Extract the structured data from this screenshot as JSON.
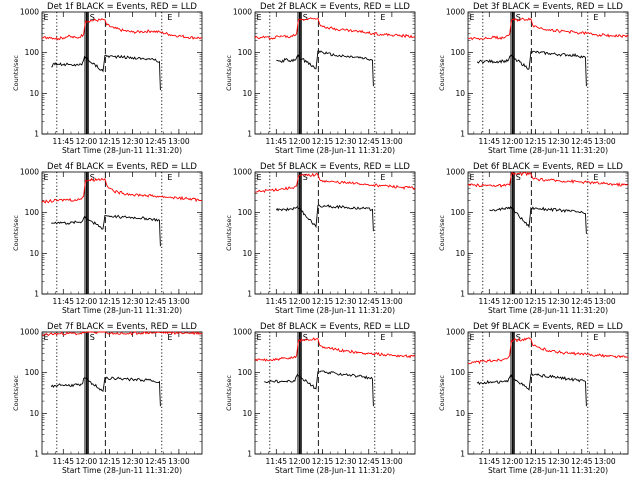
{
  "chart_data": [
    {
      "type": "line",
      "title": "Det 1f BLACK = Events, RED = LLD",
      "xlabel": "Start Time (28-Jun-11 11:31:20)",
      "ylabel": "Counts/sec",
      "yscale": "log",
      "ylim": [
        1,
        1000
      ],
      "xlim": [
        11.52,
        13.25
      ],
      "xticks": [
        "11:45",
        "12:00",
        "12:15",
        "12:30",
        "12:45",
        "13:00"
      ],
      "yticks": [
        "1",
        "10",
        "100",
        "1000"
      ],
      "markers": {
        "start": "E",
        "saa": "S",
        "end": "E"
      },
      "legend": "none",
      "series": [
        {
          "color": "#000000",
          "x": [
            11.62,
            11.65,
            11.7,
            11.75,
            11.8,
            11.85,
            11.9,
            11.95,
            11.98,
            12.18,
            12.2,
            12.3,
            12.4,
            12.5,
            12.6,
            12.7,
            12.79,
            12.8
          ],
          "y": [
            45,
            55,
            52,
            50,
            52,
            48,
            52,
            50,
            80,
            35,
            85,
            80,
            78,
            75,
            72,
            70,
            60,
            12
          ]
        },
        {
          "color": "#ff0000",
          "x": [
            11.52,
            11.6,
            11.7,
            11.8,
            11.9,
            11.97,
            11.99,
            12.2,
            12.22,
            12.3,
            12.4,
            12.5,
            12.6,
            12.7,
            12.8,
            12.9,
            13.0,
            13.1,
            13.25
          ],
          "y": [
            230,
            240,
            220,
            250,
            230,
            280,
            600,
            650,
            480,
            400,
            350,
            320,
            330,
            340,
            320,
            280,
            260,
            240,
            230
          ]
        }
      ]
    },
    {
      "type": "line",
      "title": "Det 2f BLACK = Events, RED = LLD",
      "xlabel": "Start Time (28-Jun-11 11:31:20)",
      "ylabel": "Counts/sec",
      "yscale": "log",
      "ylim": [
        1,
        1000
      ],
      "xlim": [
        11.52,
        13.25
      ],
      "xticks": [
        "11:45",
        "12:00",
        "12:15",
        "12:30",
        "12:45",
        "13:00"
      ],
      "yticks": [
        "1",
        "10",
        "100",
        "1000"
      ],
      "markers": {
        "start": "E",
        "saa": "S",
        "end": "E"
      },
      "legend": "none",
      "series": [
        {
          "color": "#000000",
          "x": [
            11.75,
            11.8,
            11.85,
            11.9,
            11.95,
            11.98,
            12.18,
            12.2,
            12.3,
            12.4,
            12.5,
            12.6,
            12.7,
            12.79,
            12.8
          ],
          "y": [
            65,
            60,
            68,
            60,
            65,
            85,
            40,
            110,
            95,
            85,
            80,
            78,
            72,
            65,
            15
          ]
        },
        {
          "color": "#ff0000",
          "x": [
            11.52,
            11.6,
            11.7,
            11.8,
            11.9,
            11.97,
            11.99,
            12.2,
            12.22,
            12.3,
            12.4,
            12.5,
            12.6,
            12.7,
            12.8,
            12.9,
            13.0,
            13.1,
            13.25
          ],
          "y": [
            230,
            240,
            230,
            260,
            240,
            290,
            650,
            700,
            500,
            420,
            380,
            360,
            340,
            320,
            300,
            280,
            270,
            260,
            250
          ]
        }
      ]
    },
    {
      "type": "line",
      "title": "Det 3f BLACK = Events, RED = LLD",
      "xlabel": "Start Time (28-Jun-11 11:31:20)",
      "ylabel": "Counts/sec",
      "yscale": "log",
      "ylim": [
        1,
        1000
      ],
      "xlim": [
        11.52,
        13.25
      ],
      "xticks": [
        "11:45",
        "12:00",
        "12:15",
        "12:30",
        "12:45",
        "13:00"
      ],
      "yticks": [
        "1",
        "10",
        "100",
        "1000"
      ],
      "markers": {
        "start": "E",
        "saa": "S",
        "end": "E"
      },
      "legend": "none",
      "series": [
        {
          "color": "#000000",
          "x": [
            11.62,
            11.7,
            11.8,
            11.9,
            11.95,
            11.98,
            12.18,
            12.2,
            12.3,
            12.4,
            12.5,
            12.6,
            12.7,
            12.79,
            12.8
          ],
          "y": [
            60,
            62,
            60,
            62,
            62,
            85,
            40,
            105,
            100,
            95,
            90,
            88,
            85,
            75,
            15
          ]
        },
        {
          "color": "#ff0000",
          "x": [
            11.52,
            11.6,
            11.7,
            11.8,
            11.9,
            11.97,
            11.99,
            12.2,
            12.22,
            12.3,
            12.4,
            12.5,
            12.6,
            12.7,
            12.8,
            12.9,
            13.0,
            13.1,
            13.25
          ],
          "y": [
            220,
            230,
            220,
            240,
            230,
            280,
            620,
            680,
            470,
            400,
            370,
            340,
            330,
            310,
            300,
            280,
            270,
            260,
            250
          ]
        }
      ]
    },
    {
      "type": "line",
      "title": "Det 4f BLACK = Events, RED = LLD",
      "xlabel": "Start Time (28-Jun-11 11:31:20)",
      "ylabel": "Counts/sec",
      "yscale": "log",
      "ylim": [
        1,
        1000
      ],
      "xlim": [
        11.52,
        13.25
      ],
      "xticks": [
        "11:45",
        "12:00",
        "12:15",
        "12:30",
        "12:45",
        "13:00"
      ],
      "yticks": [
        "1",
        "10",
        "100",
        "1000"
      ],
      "markers": {
        "start": "E",
        "saa": "S",
        "end": "E"
      },
      "legend": "none",
      "series": [
        {
          "color": "#000000",
          "x": [
            11.62,
            11.7,
            11.8,
            11.9,
            11.95,
            11.98,
            12.18,
            12.2,
            12.3,
            12.4,
            12.5,
            12.6,
            12.7,
            12.79,
            12.8
          ],
          "y": [
            55,
            58,
            55,
            58,
            60,
            80,
            40,
            85,
            80,
            78,
            76,
            74,
            70,
            65,
            15
          ]
        },
        {
          "color": "#ff0000",
          "x": [
            11.52,
            11.6,
            11.7,
            11.8,
            11.9,
            11.97,
            11.99,
            12.2,
            12.22,
            12.3,
            12.4,
            12.5,
            12.6,
            12.7,
            12.8,
            12.9,
            13.0,
            13.1,
            13.25
          ],
          "y": [
            180,
            190,
            200,
            210,
            200,
            250,
            620,
            680,
            480,
            330,
            300,
            280,
            270,
            260,
            250,
            240,
            230,
            220,
            200
          ]
        }
      ]
    },
    {
      "type": "line",
      "title": "Det 5f BLACK = Events, RED = LLD",
      "xlabel": "Start Time (28-Jun-11 11:31:20)",
      "ylabel": "Counts/sec",
      "yscale": "log",
      "ylim": [
        1,
        1000
      ],
      "xlim": [
        11.52,
        13.25
      ],
      "xticks": [
        "11:45",
        "12:00",
        "12:15",
        "12:30",
        "12:45",
        "13:00"
      ],
      "yticks": [
        "1",
        "10",
        "100",
        "1000"
      ],
      "markers": {
        "start": "E",
        "saa": "S",
        "end": "E"
      },
      "legend": "none",
      "series": [
        {
          "color": "#000000",
          "x": [
            11.75,
            11.8,
            11.85,
            11.9,
            11.95,
            11.98,
            12.18,
            12.2,
            12.3,
            12.4,
            12.5,
            12.6,
            12.7,
            12.79,
            12.8
          ],
          "y": [
            115,
            120,
            118,
            125,
            130,
            140,
            45,
            150,
            145,
            140,
            135,
            132,
            128,
            120,
            35
          ]
        },
        {
          "color": "#ff0000",
          "x": [
            11.52,
            11.6,
            11.7,
            11.8,
            11.9,
            11.97,
            11.99,
            12.2,
            12.22,
            12.3,
            12.4,
            12.5,
            12.6,
            12.7,
            12.8,
            12.9,
            13.0,
            13.1,
            13.25
          ],
          "y": [
            320,
            340,
            360,
            380,
            400,
            450,
            800,
            850,
            650,
            580,
            560,
            540,
            520,
            500,
            480,
            460,
            440,
            420,
            400
          ]
        }
      ]
    },
    {
      "type": "line",
      "title": "Det 6f BLACK = Events, RED = LLD",
      "xlabel": "Start Time (28-Jun-11 11:31:20)",
      "ylabel": "Counts/sec",
      "yscale": "log",
      "ylim": [
        1,
        1000
      ],
      "xlim": [
        11.52,
        13.25
      ],
      "xticks": [
        "11:45",
        "12:00",
        "12:15",
        "12:30",
        "12:45",
        "13:00"
      ],
      "yticks": [
        "1",
        "10",
        "100",
        "1000"
      ],
      "markers": {
        "start": "E",
        "saa": "S",
        "end": "E"
      },
      "legend": "none",
      "series": [
        {
          "color": "#000000",
          "x": [
            11.75,
            11.8,
            11.85,
            11.9,
            11.95,
            11.98,
            12.18,
            12.2,
            12.3,
            12.4,
            12.5,
            12.6,
            12.7,
            12.79,
            12.8
          ],
          "y": [
            115,
            118,
            120,
            122,
            125,
            140,
            45,
            130,
            125,
            120,
            115,
            110,
            105,
            95,
            30
          ]
        },
        {
          "color": "#ff0000",
          "x": [
            11.52,
            11.6,
            11.7,
            11.8,
            11.9,
            11.97,
            11.99,
            12.2,
            12.22,
            12.3,
            12.4,
            12.5,
            12.6,
            12.7,
            12.8,
            12.9,
            13.0,
            13.1,
            13.25
          ],
          "y": [
            470,
            470,
            470,
            470,
            460,
            480,
            900,
            900,
            700,
            650,
            630,
            610,
            600,
            580,
            560,
            540,
            520,
            500,
            480
          ]
        }
      ]
    },
    {
      "type": "line",
      "title": "Det 7f BLACK = Events, RED = LLD",
      "xlabel": "Start Time (28-Jun-11 11:31:20)",
      "ylabel": "Counts/sec",
      "yscale": "log",
      "ylim": [
        1,
        1000
      ],
      "xlim": [
        11.52,
        13.25
      ],
      "xticks": [
        "11:45",
        "12:00",
        "12:15",
        "12:30",
        "12:45",
        "13:00"
      ],
      "yticks": [
        "1",
        "10",
        "100",
        "1000"
      ],
      "markers": {
        "start": "E",
        "saa": "S",
        "end": "E"
      },
      "legend": "none",
      "series": [
        {
          "color": "#000000",
          "x": [
            11.62,
            11.7,
            11.8,
            11.9,
            11.95,
            11.98,
            12.18,
            12.2,
            12.3,
            12.4,
            12.5,
            12.6,
            12.7,
            12.79,
            12.8
          ],
          "y": [
            45,
            50,
            48,
            50,
            52,
            75,
            35,
            75,
            72,
            70,
            68,
            66,
            64,
            60,
            15
          ]
        },
        {
          "color": "#ff0000",
          "x": [
            11.52,
            11.6,
            11.7,
            11.8,
            11.9,
            11.97,
            11.99,
            12.2,
            12.22,
            12.3,
            12.4,
            12.5,
            12.6,
            12.7,
            12.8,
            12.9,
            13.0,
            13.1,
            13.25
          ],
          "y": [
            850,
            880,
            900,
            920,
            900,
            950,
            1000,
            1000,
            950,
            920,
            900,
            930,
            950,
            960,
            970,
            960,
            950,
            940,
            930
          ]
        }
      ]
    },
    {
      "type": "line",
      "title": "Det 8f BLACK = Events, RED = LLD",
      "xlabel": "Start Time (28-Jun-11 11:31:20)",
      "ylabel": "Counts/sec",
      "yscale": "log",
      "ylim": [
        1,
        1000
      ],
      "xlim": [
        11.52,
        13.25
      ],
      "xticks": [
        "11:45",
        "12:00",
        "12:15",
        "12:30",
        "12:45",
        "13:00"
      ],
      "yticks": [
        "1",
        "10",
        "100",
        "1000"
      ],
      "markers": {
        "start": "E",
        "saa": "S",
        "end": "E"
      },
      "legend": "none",
      "series": [
        {
          "color": "#000000",
          "x": [
            11.62,
            11.7,
            11.8,
            11.9,
            11.95,
            11.98,
            12.18,
            12.2,
            12.3,
            12.4,
            12.5,
            12.6,
            12.7,
            12.79,
            12.8
          ],
          "y": [
            60,
            62,
            60,
            62,
            62,
            90,
            40,
            105,
            100,
            95,
            90,
            85,
            80,
            70,
            15
          ]
        },
        {
          "color": "#ff0000",
          "x": [
            11.52,
            11.6,
            11.7,
            11.8,
            11.9,
            11.97,
            11.99,
            12.2,
            12.22,
            12.3,
            12.4,
            12.5,
            12.6,
            12.7,
            12.8,
            12.9,
            13.0,
            13.1,
            13.25
          ],
          "y": [
            200,
            210,
            200,
            220,
            220,
            260,
            620,
            680,
            470,
            400,
            370,
            340,
            320,
            300,
            290,
            280,
            270,
            260,
            250
          ]
        }
      ]
    },
    {
      "type": "line",
      "title": "Det 9f BLACK = Events, RED = LLD",
      "xlabel": "Start Time (28-Jun-11 11:31:20)",
      "ylabel": "Counts/sec",
      "yscale": "log",
      "ylim": [
        1,
        1000
      ],
      "xlim": [
        11.52,
        13.25
      ],
      "xticks": [
        "11:45",
        "12:00",
        "12:15",
        "12:30",
        "12:45",
        "13:00"
      ],
      "yticks": [
        "1",
        "10",
        "100",
        "1000"
      ],
      "markers": {
        "start": "E",
        "saa": "S",
        "end": "E"
      },
      "legend": "none",
      "series": [
        {
          "color": "#000000",
          "x": [
            11.62,
            11.7,
            11.8,
            11.9,
            11.95,
            11.98,
            12.18,
            12.2,
            12.3,
            12.4,
            12.5,
            12.6,
            12.7,
            12.79,
            12.8
          ],
          "y": [
            55,
            58,
            58,
            60,
            60,
            85,
            38,
            90,
            85,
            80,
            75,
            70,
            65,
            60,
            15
          ]
        },
        {
          "color": "#ff0000",
          "x": [
            11.52,
            11.6,
            11.7,
            11.8,
            11.9,
            11.97,
            11.99,
            12.2,
            12.22,
            12.3,
            12.4,
            12.5,
            12.6,
            12.7,
            12.8,
            12.9,
            13.0,
            13.1,
            13.25
          ],
          "y": [
            170,
            180,
            190,
            200,
            210,
            260,
            620,
            680,
            470,
            400,
            350,
            320,
            300,
            290,
            280,
            270,
            260,
            250,
            240
          ]
        }
      ]
    }
  ]
}
